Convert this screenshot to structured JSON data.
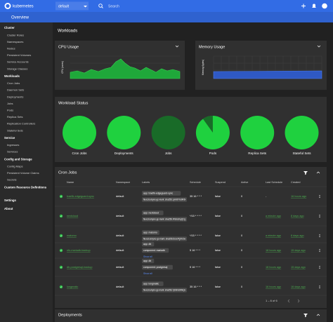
{
  "header": {
    "logo": "kubernetes",
    "namespace": "default",
    "search": "Search",
    "page_title": "Overview"
  },
  "sidebar": {
    "sections": [
      {
        "title": "Cluster",
        "items": [
          "Cluster Roles",
          "Namespaces",
          "Nodes",
          "Persistent Volumes",
          "Service Accounts",
          "Storage Classes"
        ]
      },
      {
        "title": "Workloads",
        "items": [
          "Cron Jobs",
          "Daemon Sets",
          "Deployments",
          "Jobs",
          "Pods",
          "Replica Sets",
          "Replication Controllers",
          "Stateful Sets"
        ]
      },
      {
        "title": "Service",
        "items": [
          "Ingresses",
          "Services"
        ]
      },
      {
        "title": "Config and Storage",
        "items": [
          "Config Maps",
          "Persistent Volume Claims",
          "Secrets"
        ]
      },
      {
        "title": "Custom Resource Definitions",
        "items": []
      }
    ],
    "settings": "Settings",
    "about": "About"
  },
  "section_title": "Workloads",
  "cpu_card": {
    "title": "CPU Usage",
    "y_label": "CPU (cores)"
  },
  "memory_card": {
    "title": "Memory Usage",
    "y_label": "Memory (bytes)"
  },
  "workload_status": {
    "title": "Workload Status",
    "items": [
      "Cron Jobs",
      "Deployments",
      "Jobs",
      "Pods",
      "Replica Sets",
      "Stateful Sets"
    ]
  },
  "cron_jobs": {
    "title": "Cron Jobs",
    "columns": [
      "Name",
      "Namespace",
      "Labels",
      "Schedule",
      "Suspend",
      "Active",
      "Last Schedule",
      "Created"
    ],
    "rows": [
      {
        "name": "traefik-edgeguard-sync",
        "namespace": "default",
        "labels": [
          "app: traefik-edgeguard-sync",
          "fluxcd.io/sync-gc-mark: sha256.1yhrBYhUiRbi"
        ],
        "schedule": "35 16 * * *",
        "suspend": "false",
        "active": 0,
        "last_schedule": "-",
        "created": "16 hours ago"
      },
      {
        "name": "nextcloud",
        "namespace": "default",
        "labels": [
          "app: nextcloud",
          "fluxcd.io/sync-gc-mark: sha256.Rh3nzKqQCg"
        ],
        "schedule": "*/15 * * * *",
        "suspend": "false",
        "active": 0,
        "last_schedule": "a minute ago",
        "created": "8 days ago"
      },
      {
        "name": "matomo",
        "namespace": "default",
        "labels": [
          "app: matomo",
          "fluxcd.io/sync-gc-mark: sha256.5cvcPgYh2w"
        ],
        "schedule": "*/15 * * * *",
        "suspend": "false",
        "active": 0,
        "last_schedule": "a minute ago",
        "created": "8 days ago"
      },
      {
        "name": "nfs-mariadb-backup",
        "namespace": "default",
        "labels": [
          "app: db",
          "component: mariadb"
        ],
        "show_all": "Show all",
        "schedule": "5 16 * * *",
        "suspend": "false",
        "active": 0,
        "last_schedule": "18 hours ago",
        "created": "15 days ago"
      },
      {
        "name": "db-postgresql-backup",
        "namespace": "default",
        "labels": [
          "app: db",
          "component: postgresql"
        ],
        "show_all": "Show all",
        "schedule": "5 16 * * *",
        "suspend": "false",
        "active": 0,
        "last_schedule": "18 hours ago",
        "created": "15 days ago"
      },
      {
        "name": "longmatic",
        "namespace": "default",
        "labels": [
          "app: longmatic",
          "fluxcd.io/sync-gc-mark: sha256.7yhBm2WkQs"
        ],
        "schedule": "35 16 * * *",
        "suspend": "false",
        "active": 0,
        "last_schedule": "16 hours ago",
        "created": "16 days ago"
      }
    ],
    "pagination": "1 – 6 of 6"
  },
  "deployments": {
    "title": "Deployments"
  }
}
